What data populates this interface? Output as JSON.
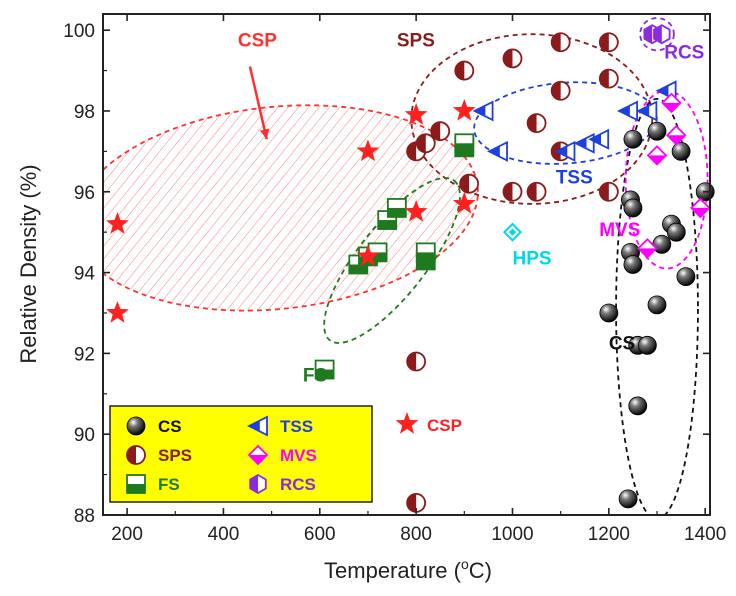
{
  "chart_data": {
    "type": "scatter",
    "xlabel": "Temperature (",
    "xlabel_sup": "o",
    "xlabel_tail": "C)",
    "ylabel": "Relative Density (%)",
    "xlim": [
      150,
      1410
    ],
    "ylim": [
      88,
      100.4
    ],
    "x_ticks": [
      200,
      400,
      600,
      800,
      1000,
      1200,
      1400
    ],
    "x_tick_labels": [
      "200",
      "400",
      "600",
      "800",
      "1000",
      "1200",
      "1400"
    ],
    "y_ticks": [
      88,
      90,
      92,
      94,
      96,
      98,
      100
    ],
    "y_tick_labels": [
      "88",
      "90",
      "92",
      "94",
      "96",
      "98",
      "100"
    ],
    "colors": {
      "CS": "#111111",
      "SPS": "#8b1a1a",
      "FS": "#1f7a1f",
      "TSS": "#1f3fe0",
      "MVS": "#ff00ff",
      "RCS": "#8a2be2",
      "HPS": "#00d8e8",
      "CSP": "#ff2020"
    },
    "series": [
      {
        "name": "CS",
        "marker": "sphere-icon",
        "points": [
          [
            1240,
            88.4
          ],
          [
            1200,
            93.0
          ],
          [
            1245,
            94.5
          ],
          [
            1250,
            94.2
          ],
          [
            1245,
            95.8
          ],
          [
            1250,
            95.6
          ],
          [
            1250,
            97.3
          ],
          [
            1260,
            92.2
          ],
          [
            1280,
            92.2
          ],
          [
            1260,
            90.7
          ],
          [
            1300,
            93.2
          ],
          [
            1300,
            97.5
          ],
          [
            1310,
            94.7
          ],
          [
            1330,
            95.2
          ],
          [
            1340,
            95.0
          ],
          [
            1350,
            97.0
          ],
          [
            1360,
            93.9
          ],
          [
            1400,
            96.0
          ]
        ]
      },
      {
        "name": "SPS",
        "marker": "half-circle-icon",
        "points": [
          [
            800,
            88.3
          ],
          [
            800,
            91.8
          ],
          [
            800,
            97.0
          ],
          [
            820,
            97.2
          ],
          [
            850,
            97.5
          ],
          [
            900,
            99.0
          ],
          [
            910,
            96.2
          ],
          [
            1000,
            99.3
          ],
          [
            1000,
            96.0
          ],
          [
            1050,
            97.7
          ],
          [
            1050,
            96.0
          ],
          [
            1100,
            99.7
          ],
          [
            1100,
            98.5
          ],
          [
            1100,
            97.0
          ],
          [
            1200,
            99.7
          ],
          [
            1200,
            98.8
          ],
          [
            1200,
            96.0
          ]
        ]
      },
      {
        "name": "FS",
        "marker": "half-square-icon",
        "points": [
          [
            610,
            91.6
          ],
          [
            680,
            94.2
          ],
          [
            700,
            94.4
          ],
          [
            720,
            94.5
          ],
          [
            740,
            95.3
          ],
          [
            760,
            95.6
          ],
          [
            820,
            94.3
          ],
          [
            820,
            94.5
          ],
          [
            900,
            97.1
          ],
          [
            900,
            97.2
          ]
        ]
      },
      {
        "name": "TSS",
        "marker": "left-triangle-icon",
        "points": [
          [
            940,
            98.0
          ],
          [
            970,
            97.0
          ],
          [
            1110,
            97.0
          ],
          [
            1150,
            97.2
          ],
          [
            1180,
            97.3
          ],
          [
            1240,
            98.0
          ],
          [
            1280,
            98.0
          ],
          [
            1320,
            98.5
          ]
        ]
      },
      {
        "name": "MVS",
        "marker": "half-diamond-icon",
        "points": [
          [
            1280,
            94.6
          ],
          [
            1300,
            96.9
          ],
          [
            1330,
            98.2
          ],
          [
            1340,
            97.4
          ],
          [
            1390,
            95.6
          ]
        ]
      },
      {
        "name": "RCS",
        "marker": "half-hexagon-icon",
        "points": [
          [
            1290,
            99.9
          ],
          [
            1310,
            99.9
          ]
        ]
      },
      {
        "name": "HPS",
        "marker": "open-diamond-icon",
        "points": [
          [
            1000,
            95.0
          ]
        ]
      },
      {
        "name": "CSP",
        "marker": "star-icon",
        "points": [
          [
            180,
            95.2
          ],
          [
            180,
            93.0
          ],
          [
            700,
            97.0
          ],
          [
            700,
            94.4
          ],
          [
            800,
            97.9
          ],
          [
            800,
            95.5
          ],
          [
            900,
            98.0
          ],
          [
            900,
            95.7
          ]
        ]
      }
    ],
    "regions": [
      {
        "label": "CSP",
        "color": "#ff3030",
        "hatched": true,
        "center": [
          510,
          95.6
        ],
        "rx": 420,
        "ry": 2.5,
        "rot": -6
      },
      {
        "label": "SPS",
        "color": "#8b1a1a",
        "center": [
          1040,
          97.8
        ],
        "rx": 250,
        "ry": 2.1,
        "rot": 0
      },
      {
        "label": "TSS",
        "color": "#1f3fe0",
        "center": [
          1110,
          97.7
        ],
        "rx": 190,
        "ry": 1.0,
        "rot": -4
      },
      {
        "label": "FS",
        "color": "#1f7a1f",
        "center": [
          750,
          94.3
        ],
        "rx": 210,
        "ry": 0.85,
        "rot": -52
      },
      {
        "label": "CS",
        "color": "#111111",
        "center": [
          1300,
          93.1
        ],
        "rx": 85,
        "ry": 5.2,
        "rot": 0
      },
      {
        "label": "MVS",
        "color": "#ff00ff",
        "center": [
          1320,
          96.3
        ],
        "rx": 85,
        "ry": 2.2,
        "rot": 0
      },
      {
        "label": "RCS",
        "color": "#8a2be2",
        "center": [
          1300,
          99.9
        ],
        "rx": 35,
        "ry": 0.4,
        "rot": 0
      }
    ],
    "annotations": [
      {
        "text": "CSP",
        "color": "#ff3030",
        "at": [
          430,
          99.6
        ]
      },
      {
        "text": "SPS",
        "color": "#8b1a1a",
        "at": [
          760,
          99.6
        ]
      },
      {
        "text": "TSS",
        "color": "#1f3fe0",
        "at": [
          1090,
          96.2
        ]
      },
      {
        "text": "HPS",
        "color": "#00d8e8",
        "at": [
          1000,
          94.2
        ]
      },
      {
        "text": "MVS",
        "color": "#ff00ff",
        "at": [
          1180,
          94.9
        ]
      },
      {
        "text": "RCS",
        "color": "#8a2be2",
        "at": [
          1315,
          99.3
        ]
      },
      {
        "text": "CS",
        "color": "#111111",
        "at": [
          1200,
          92.1
        ]
      },
      {
        "text": "FS",
        "color": "#1f7a1f",
        "at": [
          565,
          91.3
        ]
      }
    ],
    "legend": {
      "placement": "bottom-left",
      "background": "#ffff00",
      "entries": [
        {
          "label": "CS",
          "marker": "sphere-icon",
          "color": "#111111"
        },
        {
          "label": "TSS",
          "marker": "left-triangle-icon",
          "color": "#1f3fe0"
        },
        {
          "label": "SPS",
          "marker": "half-circle-icon",
          "color": "#8b1a1a"
        },
        {
          "label": "MVS",
          "marker": "half-diamond-icon",
          "color": "#ff00ff"
        },
        {
          "label": "FS",
          "marker": "half-square-icon",
          "color": "#1f7a1f"
        },
        {
          "label": "RCS",
          "marker": "half-hexagon-icon",
          "color": "#8a2be2"
        }
      ]
    },
    "outside_legend": {
      "label": "CSP",
      "marker": "star-icon",
      "color": "#ff2020"
    }
  }
}
